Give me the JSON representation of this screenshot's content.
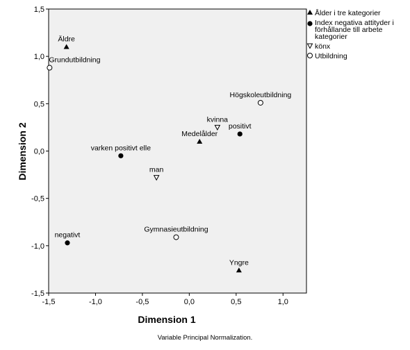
{
  "chart_data": {
    "type": "scatter",
    "xlabel": "Dimension 1",
    "ylabel": "Dimension 2",
    "xlim": [
      -1.5,
      1.25
    ],
    "ylim": [
      -1.5,
      1.5
    ],
    "xticks": [
      "-1,5",
      "-1,0",
      "-0,5",
      "0,0",
      "0,5",
      "1,0"
    ],
    "xtick_values": [
      -1.5,
      -1.0,
      -0.5,
      0.0,
      0.5,
      1.0
    ],
    "yticks": [
      "1,5",
      "1,0",
      "0,5",
      "0,0",
      "-0,5",
      "-1,0",
      "-1,5"
    ],
    "ytick_values": [
      1.5,
      1.0,
      0.5,
      0.0,
      -0.5,
      -1.0,
      -1.5
    ],
    "grid": false,
    "legend_position": "right",
    "series": [
      {
        "name": "Ålder i tre kategorier",
        "marker": "filled-triangle-up",
        "points": [
          {
            "label": "Äldre",
            "x": -1.31,
            "y": 1.1
          },
          {
            "label": "Medelålder",
            "x": 0.11,
            "y": 0.1
          },
          {
            "label": "Yngre",
            "x": 0.53,
            "y": -1.26
          }
        ]
      },
      {
        "name": "Index negativa attityder i förhållande till arbete kategorier",
        "name_lines": [
          "Index negativa attityder i",
          "förhållande till arbete",
          "kategorier"
        ],
        "marker": "filled-circle",
        "points": [
          {
            "label": "varken positivt elle",
            "x": -0.73,
            "y": -0.05
          },
          {
            "label": "positivt",
            "x": 0.54,
            "y": 0.18
          },
          {
            "label": "negativt",
            "x": -1.3,
            "y": -0.97
          }
        ]
      },
      {
        "name": "könx",
        "marker": "open-triangle-down",
        "points": [
          {
            "label": "kvinna",
            "x": 0.3,
            "y": 0.25
          },
          {
            "label": "man",
            "x": -0.35,
            "y": -0.28
          }
        ]
      },
      {
        "name": "Utbildning",
        "marker": "open-circle",
        "points": [
          {
            "label": "Grundutbildning",
            "x": -1.49,
            "y": 0.88
          },
          {
            "label": "Högskoleutbildning",
            "x": 0.76,
            "y": 0.51
          },
          {
            "label": "Gymnasieutbildning",
            "x": -0.14,
            "y": -0.91
          }
        ]
      }
    ]
  },
  "footnote": "Variable Principal Normalization."
}
